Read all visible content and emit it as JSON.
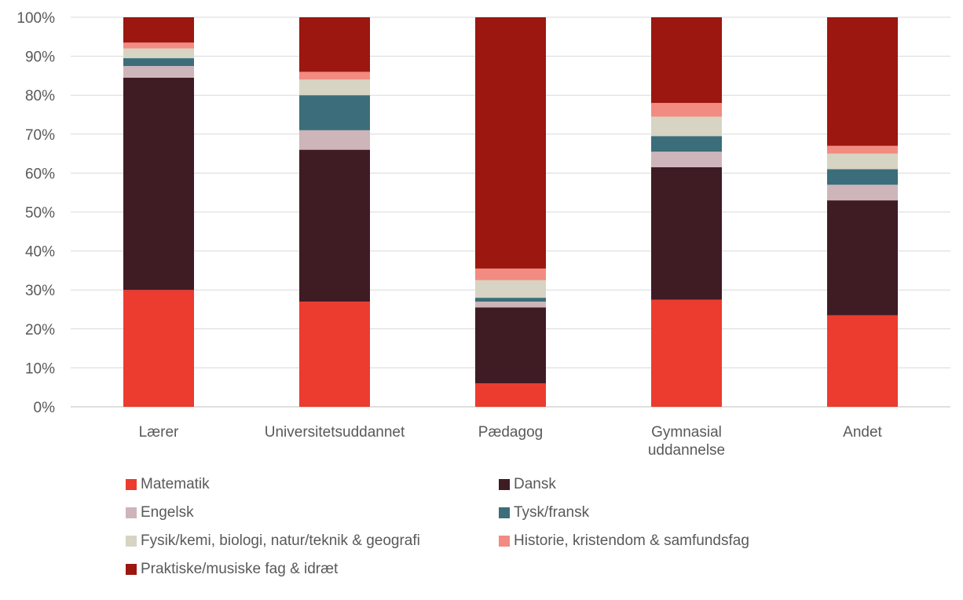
{
  "chart_data": {
    "type": "bar",
    "stacked": true,
    "categories": [
      "Lærer",
      "Universitetsuddannet",
      "Pædagog",
      "Gymnasial uddannelse",
      "Andet"
    ],
    "category_lines": [
      [
        "Lærer"
      ],
      [
        "Universitetsuddannet"
      ],
      [
        "Pædagog"
      ],
      [
        "Gymnasial",
        "uddannelse"
      ],
      [
        "Andet"
      ]
    ],
    "y_ticks": [
      "0%",
      "10%",
      "20%",
      "30%",
      "40%",
      "50%",
      "60%",
      "70%",
      "80%",
      "90%",
      "100%"
    ],
    "ylim": [
      0,
      100
    ],
    "grid": true,
    "legend_position": "bottom",
    "series": [
      {
        "name": "Matematik",
        "color": "#ec3b2f",
        "values": [
          30,
          27,
          6,
          27.5,
          23.5
        ]
      },
      {
        "name": "Dansk",
        "color": "#3f1b24",
        "values": [
          54.5,
          39,
          19.5,
          34,
          29.5
        ]
      },
      {
        "name": "Engelsk",
        "color": "#cdb5ba",
        "values": [
          3,
          5,
          1.5,
          4,
          4
        ]
      },
      {
        "name": "Tysk/fransk",
        "color": "#3b6e7a",
        "values": [
          2,
          9,
          1,
          4,
          4
        ]
      },
      {
        "name": "Fysik/kemi, biologi, natur/teknik & geografi",
        "color": "#d7d4c3",
        "values": [
          2.5,
          4,
          4.5,
          5,
          4
        ]
      },
      {
        "name": "Historie, kristendom & samfundsfag",
        "color": "#f28b81",
        "values": [
          1.5,
          2,
          3,
          3.5,
          2
        ]
      },
      {
        "name": "Praktiske/musiske fag & idræt",
        "color": "#9b1710",
        "values": [
          6.5,
          14,
          64.5,
          22,
          33
        ]
      }
    ]
  }
}
